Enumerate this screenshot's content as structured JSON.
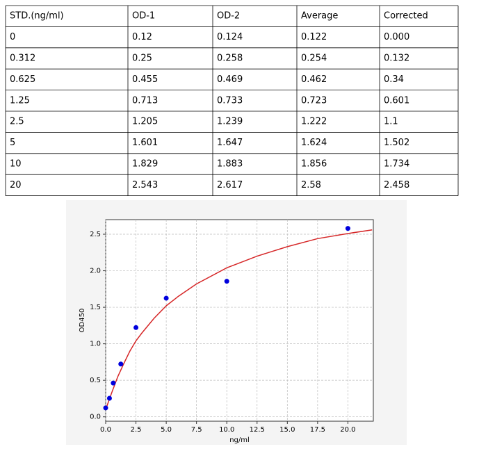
{
  "table": {
    "header": [
      "STD.(ng/ml)",
      "OD-1",
      "OD-2",
      "Average",
      "Corrected"
    ],
    "rows": [
      [
        "0",
        "0.12",
        "0.124",
        "0.122",
        "0.000"
      ],
      [
        "0.312",
        "0.25",
        "0.258",
        "0.254",
        "0.132"
      ],
      [
        "0.625",
        "0.455",
        "0.469",
        "0.462",
        "0.34"
      ],
      [
        "1.25",
        "0.713",
        "0.733",
        "0.723",
        "0.601"
      ],
      [
        "2.5",
        "1.205",
        "1.239",
        "1.222",
        "1.1"
      ],
      [
        "5",
        "1.601",
        "1.647",
        "1.624",
        "1.502"
      ],
      [
        "10",
        "1.829",
        "1.883",
        "1.856",
        "1.734"
      ],
      [
        "20",
        "2.543",
        "2.617",
        "2.58",
        "2.458"
      ]
    ]
  },
  "chart_data": {
    "type": "scatter",
    "xlabel": "ng/ml",
    "ylabel": "OD450",
    "x": [
      0,
      0.312,
      0.625,
      1.25,
      2.5,
      5,
      10,
      20
    ],
    "values": [
      0.122,
      0.254,
      0.462,
      0.723,
      1.222,
      1.624,
      1.856,
      2.58
    ],
    "color": "#0000dd",
    "fit": {
      "color": "#d62728",
      "x": [
        0,
        0.5,
        1,
        1.5,
        2,
        2.5,
        3,
        4,
        5,
        6,
        7.5,
        10,
        12.5,
        15,
        17.5,
        20,
        22
      ],
      "values": [
        0.1,
        0.33,
        0.55,
        0.73,
        0.9,
        1.04,
        1.15,
        1.35,
        1.52,
        1.65,
        1.82,
        2.04,
        2.2,
        2.33,
        2.44,
        2.51,
        2.56
      ]
    },
    "xlim": [
      0,
      22.1
    ],
    "ylim": [
      -0.06,
      2.7
    ],
    "xticks": [
      {
        "value": 0,
        "label": "0.0"
      },
      2.5,
      {
        "value": 5,
        "label": "5.0"
      },
      7.5,
      {
        "value": 10,
        "label": "10.0"
      },
      12.5,
      {
        "value": 15,
        "label": "15.0"
      },
      17.5,
      {
        "value": 20,
        "label": "20.0"
      }
    ],
    "yticks": [
      {
        "value": 0,
        "label": "0.0"
      },
      0.5,
      {
        "value": 1,
        "label": "1.0"
      },
      1.5,
      {
        "value": 2,
        "label": "2.0"
      },
      2.5
    ],
    "grid": true
  }
}
